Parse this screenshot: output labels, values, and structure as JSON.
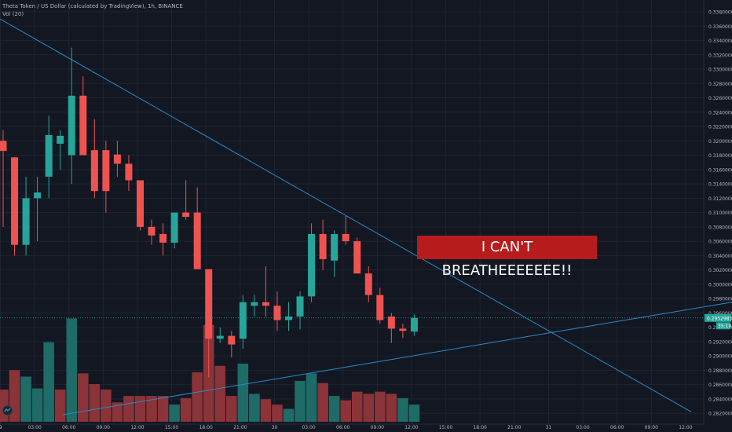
{
  "header": {
    "symbol_line": "Theta Token / US Dollar (calculated by TradingView), 1h, BINANCE",
    "volume_label": "Vol (20)"
  },
  "annotation": {
    "text": "I CAN'T BREATHEEEEEEE!!"
  },
  "price_labels": {
    "last": "0.29529833",
    "countdown": "35:19"
  },
  "colors": {
    "background": "#131722",
    "grid": "#1f2431",
    "up": "#26a69a",
    "down": "#ef5350",
    "up_volume": "#1e6b67",
    "down_volume": "#8a3338",
    "trendline": "#2a8bc9",
    "axis_text": "#b2b5be",
    "annotation_bg": "#b71c1c"
  },
  "chart_data": {
    "type": "candlestick",
    "title": "Theta Token / US Dollar (calculated by TradingView), 1h, BINANCE",
    "y_axis": {
      "range": [
        0.2818,
        0.338
      ],
      "ticks": [
        "0.33800000",
        "0.33600000",
        "0.33400000",
        "0.33200000",
        "0.33000000",
        "0.32800000",
        "0.32600000",
        "0.32400000",
        "0.32200000",
        "0.32000000",
        "0.31800000",
        "0.31600000",
        "0.31400000",
        "0.31200000",
        "0.31000000",
        "0.30800000",
        "0.30600000",
        "0.30400000",
        "0.30200000",
        "0.30000000",
        "0.29800000",
        "0.29600000",
        "0.29400000",
        "0.29200000",
        "0.29000000",
        "0.28800000",
        "0.28600000",
        "0.28400000",
        "0.28200000"
      ]
    },
    "x_axis": {
      "ticks": [
        "9",
        "03:00",
        "06:00",
        "09:00",
        "12:00",
        "15:00",
        "18:00",
        "21:00",
        "30",
        "03:00",
        "06:00",
        "09:00",
        "12:00",
        "15:00",
        "18:00",
        "21:00",
        "31",
        "03:00",
        "06:00",
        "09:00",
        "12:00"
      ]
    },
    "candles": [
      {
        "o": 0.32,
        "h": 0.3215,
        "l": 0.308,
        "c": 0.3186
      },
      {
        "o": 0.3177,
        "h": 0.3177,
        "l": 0.304,
        "c": 0.3055
      },
      {
        "o": 0.3055,
        "h": 0.315,
        "l": 0.304,
        "c": 0.312
      },
      {
        "o": 0.312,
        "h": 0.315,
        "l": 0.306,
        "c": 0.3128
      },
      {
        "o": 0.315,
        "h": 0.3235,
        "l": 0.312,
        "c": 0.3208
      },
      {
        "o": 0.3196,
        "h": 0.3215,
        "l": 0.316,
        "c": 0.3207
      },
      {
        "o": 0.318,
        "h": 0.333,
        "l": 0.314,
        "c": 0.3263
      },
      {
        "o": 0.3263,
        "h": 0.329,
        "l": 0.318,
        "c": 0.318
      },
      {
        "o": 0.3187,
        "h": 0.323,
        "l": 0.312,
        "c": 0.313
      },
      {
        "o": 0.3187,
        "h": 0.32,
        "l": 0.31,
        "c": 0.313
      },
      {
        "o": 0.3181,
        "h": 0.32,
        "l": 0.315,
        "c": 0.3168
      },
      {
        "o": 0.3168,
        "h": 0.318,
        "l": 0.313,
        "c": 0.3145
      },
      {
        "o": 0.3145,
        "h": 0.3145,
        "l": 0.3075,
        "c": 0.308
      },
      {
        "o": 0.308,
        "h": 0.309,
        "l": 0.3055,
        "c": 0.3068
      },
      {
        "o": 0.307,
        "h": 0.3085,
        "l": 0.304,
        "c": 0.3058
      },
      {
        "o": 0.3058,
        "h": 0.31,
        "l": 0.305,
        "c": 0.31
      },
      {
        "o": 0.31,
        "h": 0.3145,
        "l": 0.309,
        "c": 0.3094
      },
      {
        "o": 0.31,
        "h": 0.3135,
        "l": 0.3025,
        "c": 0.3021
      },
      {
        "o": 0.3021,
        "h": 0.3021,
        "l": 0.287,
        "c": 0.2924
      },
      {
        "o": 0.2924,
        "h": 0.294,
        "l": 0.2918,
        "c": 0.2928
      },
      {
        "o": 0.2928,
        "h": 0.2935,
        "l": 0.2898,
        "c": 0.2916
      },
      {
        "o": 0.2924,
        "h": 0.2985,
        "l": 0.291,
        "c": 0.2975
      },
      {
        "o": 0.297,
        "h": 0.2985,
        "l": 0.2955,
        "c": 0.2975
      },
      {
        "o": 0.2975,
        "h": 0.3025,
        "l": 0.2955,
        "c": 0.297
      },
      {
        "o": 0.297,
        "h": 0.299,
        "l": 0.2935,
        "c": 0.295
      },
      {
        "o": 0.295,
        "h": 0.2975,
        "l": 0.2935,
        "c": 0.2955
      },
      {
        "o": 0.2955,
        "h": 0.299,
        "l": 0.2937,
        "c": 0.2983
      },
      {
        "o": 0.2983,
        "h": 0.3085,
        "l": 0.2975,
        "c": 0.307
      },
      {
        "o": 0.307,
        "h": 0.309,
        "l": 0.302,
        "c": 0.3035
      },
      {
        "o": 0.3033,
        "h": 0.3075,
        "l": 0.301,
        "c": 0.307
      },
      {
        "o": 0.307,
        "h": 0.3095,
        "l": 0.3055,
        "c": 0.306
      },
      {
        "o": 0.306,
        "h": 0.3065,
        "l": 0.3015,
        "c": 0.3015
      },
      {
        "o": 0.3015,
        "h": 0.3025,
        "l": 0.2975,
        "c": 0.2985
      },
      {
        "o": 0.2985,
        "h": 0.2995,
        "l": 0.2945,
        "c": 0.295
      },
      {
        "o": 0.2955,
        "h": 0.296,
        "l": 0.2918,
        "c": 0.2938
      },
      {
        "o": 0.2938,
        "h": 0.2945,
        "l": 0.2925,
        "c": 0.2935
      },
      {
        "o": 0.2934,
        "h": 0.2958,
        "l": 0.2928,
        "c": 0.2953
      }
    ],
    "volume": {
      "label": "Vol (20)",
      "bars": [
        {
          "v": 0.3,
          "up": false
        },
        {
          "v": 0.48,
          "up": false
        },
        {
          "v": 0.42,
          "up": true
        },
        {
          "v": 0.31,
          "up": true
        },
        {
          "v": 0.74,
          "up": true
        },
        {
          "v": 0.3,
          "up": false
        },
        {
          "v": 0.96,
          "up": true
        },
        {
          "v": 0.45,
          "up": false
        },
        {
          "v": 0.35,
          "up": false
        },
        {
          "v": 0.3,
          "up": false
        },
        {
          "v": 0.18,
          "up": false
        },
        {
          "v": 0.24,
          "up": false
        },
        {
          "v": 0.24,
          "up": false
        },
        {
          "v": 0.24,
          "up": false
        },
        {
          "v": 0.24,
          "up": false
        },
        {
          "v": 0.16,
          "up": true
        },
        {
          "v": 0.22,
          "up": false
        },
        {
          "v": 0.46,
          "up": false
        },
        {
          "v": 0.9,
          "up": false
        },
        {
          "v": 0.52,
          "up": false
        },
        {
          "v": 0.24,
          "up": false
        },
        {
          "v": 0.54,
          "up": true
        },
        {
          "v": 0.26,
          "up": true
        },
        {
          "v": 0.21,
          "up": false
        },
        {
          "v": 0.16,
          "up": false
        },
        {
          "v": 0.12,
          "up": true
        },
        {
          "v": 0.38,
          "up": true
        },
        {
          "v": 0.45,
          "up": true
        },
        {
          "v": 0.36,
          "up": false
        },
        {
          "v": 0.24,
          "up": true
        },
        {
          "v": 0.2,
          "up": false
        },
        {
          "v": 0.28,
          "up": false
        },
        {
          "v": 0.26,
          "up": false
        },
        {
          "v": 0.28,
          "up": false
        },
        {
          "v": 0.26,
          "up": false
        },
        {
          "v": 0.22,
          "up": true
        },
        {
          "v": 0.16,
          "up": true
        }
      ]
    },
    "grid": true,
    "last_price": 0.29529833
  }
}
